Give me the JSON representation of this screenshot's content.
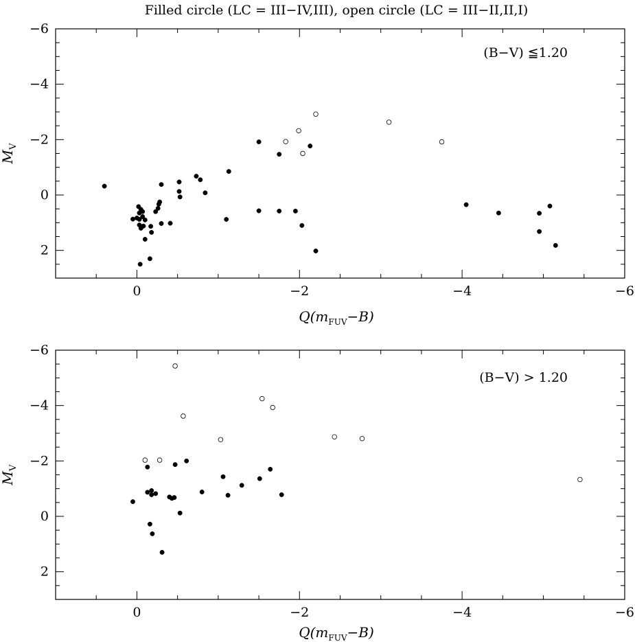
{
  "page_title": "Filled circle (LC = III−IV,III), open circle (LC = III−II,II,I)",
  "chart_data": [
    {
      "type": "scatter",
      "title": "",
      "annotation": "(B−V) ≦1.20",
      "xlabel": "Q(mFUV−B)",
      "ylabel": "MV",
      "xlim": [
        1.0,
        -6.0
      ],
      "ylim": [
        3.0,
        -6.0
      ],
      "xticks": [
        "0",
        "−2",
        "−4",
        "−6"
      ],
      "yticks": [
        "−6",
        "−4",
        "−2",
        "0",
        "2"
      ],
      "series": [
        {
          "marker": "filled circle",
          "points": [
            [
              0.4,
              -0.32
            ],
            [
              -0.03,
              1.08
            ],
            [
              0.05,
              0.87
            ],
            [
              0.0,
              0.83
            ],
            [
              -0.02,
              0.42
            ],
            [
              -0.05,
              0.52
            ],
            [
              -0.07,
              0.6
            ],
            [
              -0.03,
              0.65
            ],
            [
              -0.07,
              0.78
            ],
            [
              -0.03,
              0.88
            ],
            [
              -0.1,
              0.9
            ],
            [
              -0.05,
              1.2
            ],
            [
              -0.08,
              1.12
            ],
            [
              -0.1,
              1.6
            ],
            [
              -0.17,
              1.13
            ],
            [
              -0.18,
              1.35
            ],
            [
              -0.23,
              0.6
            ],
            [
              -0.26,
              0.48
            ],
            [
              -0.27,
              0.33
            ],
            [
              -0.28,
              0.25
            ],
            [
              -0.3,
              1.03
            ],
            [
              -0.3,
              -0.38
            ],
            [
              -0.41,
              1.02
            ],
            [
              -0.52,
              -0.47
            ],
            [
              -0.52,
              -0.13
            ],
            [
              -0.53,
              0.07
            ],
            [
              -0.04,
              2.5
            ],
            [
              -0.16,
              2.3
            ],
            [
              -0.73,
              -0.68
            ],
            [
              -0.78,
              -0.55
            ],
            [
              -0.84,
              -0.08
            ],
            [
              -1.1,
              0.88
            ],
            [
              -1.13,
              -0.85
            ],
            [
              -1.5,
              -1.92
            ],
            [
              -1.5,
              0.57
            ],
            [
              -1.75,
              -1.47
            ],
            [
              -1.75,
              0.58
            ],
            [
              -1.95,
              0.58
            ],
            [
              -2.03,
              1.1
            ],
            [
              -2.13,
              -1.77
            ],
            [
              -2.2,
              2.02
            ],
            [
              -4.05,
              0.35
            ],
            [
              -4.45,
              0.65
            ],
            [
              -4.95,
              0.66
            ],
            [
              -4.95,
              1.32
            ],
            [
              -5.08,
              0.4
            ],
            [
              -5.15,
              1.82
            ]
          ]
        },
        {
          "marker": "open circle",
          "points": [
            [
              -1.83,
              -1.93
            ],
            [
              -1.99,
              -2.32
            ],
            [
              -2.04,
              -1.5
            ],
            [
              -2.2,
              -2.92
            ],
            [
              -3.1,
              -2.63
            ],
            [
              -3.75,
              -1.92
            ]
          ]
        }
      ]
    },
    {
      "type": "scatter",
      "title": "",
      "annotation": "(B−V) > 1.20",
      "xlabel": "Q(mFUV−B)",
      "ylabel": "MV",
      "xlim": [
        1.0,
        -6.0
      ],
      "ylim": [
        3.0,
        -6.0
      ],
      "xticks": [
        "0",
        "−2",
        "−4",
        "−6"
      ],
      "yticks": [
        "−6",
        "−4",
        "−2",
        "0",
        "2"
      ],
      "series": [
        {
          "marker": "filled circle",
          "points": [
            [
              0.05,
              -0.53
            ],
            [
              -0.13,
              -1.78
            ],
            [
              -0.13,
              -0.87
            ],
            [
              -0.18,
              -0.78
            ],
            [
              -0.18,
              -0.93
            ],
            [
              -0.23,
              -0.82
            ],
            [
              -0.16,
              0.28
            ],
            [
              -0.19,
              0.63
            ],
            [
              -0.31,
              1.3
            ],
            [
              -0.4,
              -0.7
            ],
            [
              -0.43,
              -0.65
            ],
            [
              -0.46,
              -0.68
            ],
            [
              -0.47,
              -1.87
            ],
            [
              -0.53,
              -0.12
            ],
            [
              -0.61,
              -2.0
            ],
            [
              -0.8,
              -0.88
            ],
            [
              -1.06,
              -1.43
            ],
            [
              -1.12,
              -0.76
            ],
            [
              -1.29,
              -1.12
            ],
            [
              -1.51,
              -1.36
            ],
            [
              -1.64,
              -1.7
            ],
            [
              -1.78,
              -0.78
            ]
          ]
        },
        {
          "marker": "open circle",
          "points": [
            [
              -0.1,
              -2.03
            ],
            [
              -0.28,
              -2.03
            ],
            [
              -0.47,
              -5.43
            ],
            [
              -0.57,
              -3.62
            ],
            [
              -1.03,
              -2.77
            ],
            [
              -1.54,
              -4.25
            ],
            [
              -1.67,
              -3.93
            ],
            [
              -2.43,
              -2.87
            ],
            [
              -2.77,
              -2.81
            ],
            [
              -5.45,
              -1.33
            ]
          ]
        }
      ]
    }
  ]
}
